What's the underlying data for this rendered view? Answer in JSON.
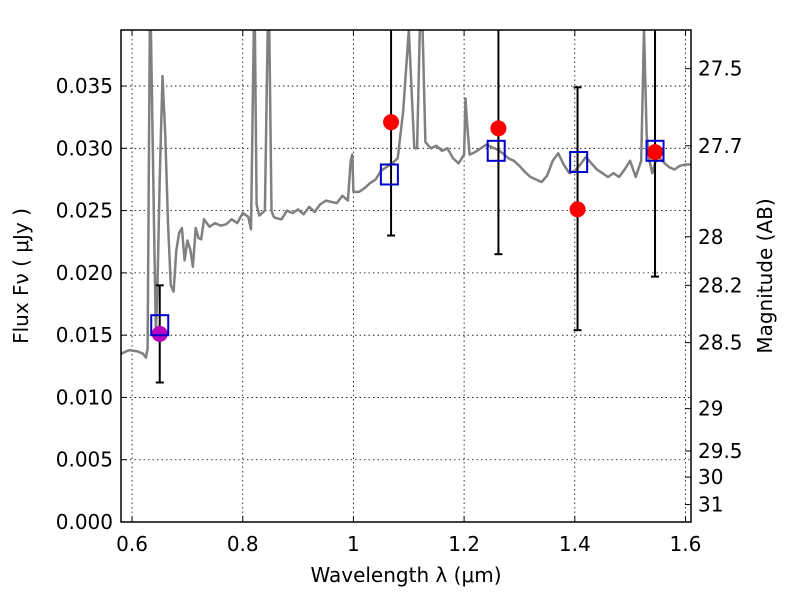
{
  "chart_data": {
    "type": "scatter",
    "title": "",
    "xlabel": "Wavelength  λ (μm)",
    "ylabel": "Flux  Fν  ( μJy )",
    "ylabel_right": "Magnitude (AB)",
    "xlim": [
      0.58,
      1.61
    ],
    "ylim": [
      0.0,
      0.0395
    ],
    "grid": true,
    "x_ticks": [
      0.6,
      0.8,
      1.0,
      1.2,
      1.4,
      1.6
    ],
    "x_tick_labels": [
      "0.6",
      "0.8",
      "1",
      "1.2",
      "1.4",
      "1.6"
    ],
    "y_ticks": [
      0.0,
      0.005,
      0.01,
      0.015,
      0.02,
      0.025,
      0.03,
      0.035
    ],
    "y_tick_labels": [
      "0.000",
      "0.005",
      "0.010",
      "0.015",
      "0.020",
      "0.025",
      "0.030",
      "0.035"
    ],
    "right_ticks": [
      {
        "label": "27.5",
        "flux": 0.0364
      },
      {
        "label": "27.7",
        "flux": 0.0302
      },
      {
        "label": "28",
        "flux": 0.0229
      },
      {
        "label": "28.2",
        "flux": 0.019
      },
      {
        "label": "28.5",
        "flux": 0.0144
      },
      {
        "label": "29",
        "flux": 0.0091
      },
      {
        "label": "29.5",
        "flux": 0.0057
      },
      {
        "label": "30",
        "flux": 0.0036
      },
      {
        "label": "31",
        "flux": 0.0014
      }
    ],
    "series": [
      {
        "kind": "line",
        "color": "#808080",
        "x": [
          0.58,
          0.595,
          0.61,
          0.62,
          0.625,
          0.628,
          0.632,
          0.634,
          0.637,
          0.64,
          0.643,
          0.646,
          0.65,
          0.655,
          0.66,
          0.665,
          0.67,
          0.675,
          0.68,
          0.685,
          0.69,
          0.695,
          0.7,
          0.705,
          0.71,
          0.715,
          0.72,
          0.725,
          0.73,
          0.74,
          0.75,
          0.76,
          0.77,
          0.78,
          0.79,
          0.8,
          0.81,
          0.815,
          0.82,
          0.822,
          0.825,
          0.83,
          0.84,
          0.845,
          0.848,
          0.852,
          0.856,
          0.86,
          0.87,
          0.88,
          0.89,
          0.9,
          0.91,
          0.92,
          0.93,
          0.94,
          0.95,
          0.96,
          0.97,
          0.98,
          0.99,
          0.995,
          0.998,
          1.0,
          1.01,
          1.02,
          1.03,
          1.04,
          1.05,
          1.06,
          1.07,
          1.08,
          1.09,
          1.1,
          1.11,
          1.115,
          1.12,
          1.125,
          1.13,
          1.14,
          1.15,
          1.16,
          1.17,
          1.18,
          1.19,
          1.2,
          1.2025,
          1.205,
          1.21,
          1.22,
          1.23,
          1.24,
          1.25,
          1.26,
          1.27,
          1.28,
          1.29,
          1.3,
          1.31,
          1.32,
          1.33,
          1.34,
          1.35,
          1.36,
          1.37,
          1.38,
          1.39,
          1.4,
          1.41,
          1.42,
          1.43,
          1.44,
          1.45,
          1.46,
          1.47,
          1.48,
          1.49,
          1.5,
          1.51,
          1.52,
          1.525,
          1.53,
          1.535,
          1.54,
          1.545,
          1.55,
          1.56,
          1.57,
          1.58,
          1.59,
          1.6,
          1.61
        ],
        "y": [
          0.0135,
          0.0138,
          0.0137,
          0.0135,
          0.0132,
          0.0139,
          0.0395,
          0.0395,
          0.0315,
          0.023,
          0.0152,
          0.019,
          0.0275,
          0.0358,
          0.031,
          0.024,
          0.019,
          0.0185,
          0.0218,
          0.0232,
          0.0236,
          0.021,
          0.0226,
          0.0219,
          0.0205,
          0.0236,
          0.0228,
          0.0227,
          0.0243,
          0.0237,
          0.024,
          0.0238,
          0.0239,
          0.0243,
          0.024,
          0.0248,
          0.0245,
          0.0235,
          0.0395,
          0.0395,
          0.0255,
          0.0246,
          0.025,
          0.0395,
          0.0395,
          0.025,
          0.0245,
          0.0244,
          0.0243,
          0.025,
          0.0248,
          0.0251,
          0.0247,
          0.0253,
          0.0249,
          0.0255,
          0.0258,
          0.0257,
          0.0256,
          0.0262,
          0.0258,
          0.029,
          0.0295,
          0.0265,
          0.0265,
          0.0268,
          0.0272,
          0.0275,
          0.0282,
          0.0285,
          0.0288,
          0.0292,
          0.033,
          0.0395,
          0.03,
          0.03,
          0.0395,
          0.0395,
          0.0305,
          0.03,
          0.0302,
          0.0298,
          0.03,
          0.0292,
          0.0288,
          0.0295,
          0.034,
          0.0322,
          0.0295,
          0.0297,
          0.03,
          0.0303,
          0.0301,
          0.0299,
          0.0296,
          0.0292,
          0.029,
          0.0286,
          0.0281,
          0.0277,
          0.0275,
          0.0273,
          0.0278,
          0.029,
          0.0296,
          0.0287,
          0.028,
          0.0282,
          0.0287,
          0.0293,
          0.0288,
          0.0283,
          0.028,
          0.0277,
          0.028,
          0.0277,
          0.0283,
          0.029,
          0.0277,
          0.029,
          0.0395,
          0.031,
          0.029,
          0.028,
          0.0288,
          0.0294,
          0.0289,
          0.0285,
          0.0283,
          0.0286,
          0.0287,
          0.0287
        ]
      },
      {
        "kind": "open-square",
        "color": "#0000cc",
        "x": [
          0.65,
          1.065,
          1.258,
          1.407,
          1.545
        ],
        "y": [
          0.0158,
          0.0279,
          0.0298,
          0.0289,
          0.0298
        ]
      },
      {
        "kind": "filled-circle",
        "x": [
          0.65,
          1.068,
          1.262,
          1.405,
          1.545
        ],
        "y": [
          0.0151,
          0.0321,
          0.0316,
          0.0251,
          0.0297
        ],
        "colors": [
          "#bb00bb",
          "#ff0000",
          "#ff0000",
          "#ff0000",
          "#ff0000"
        ],
        "err_low": [
          0.0112,
          0.023,
          0.0215,
          0.0154,
          0.0197
        ],
        "err_high": [
          0.019,
          0.0395,
          0.0395,
          0.0349,
          0.0395
        ]
      }
    ]
  }
}
